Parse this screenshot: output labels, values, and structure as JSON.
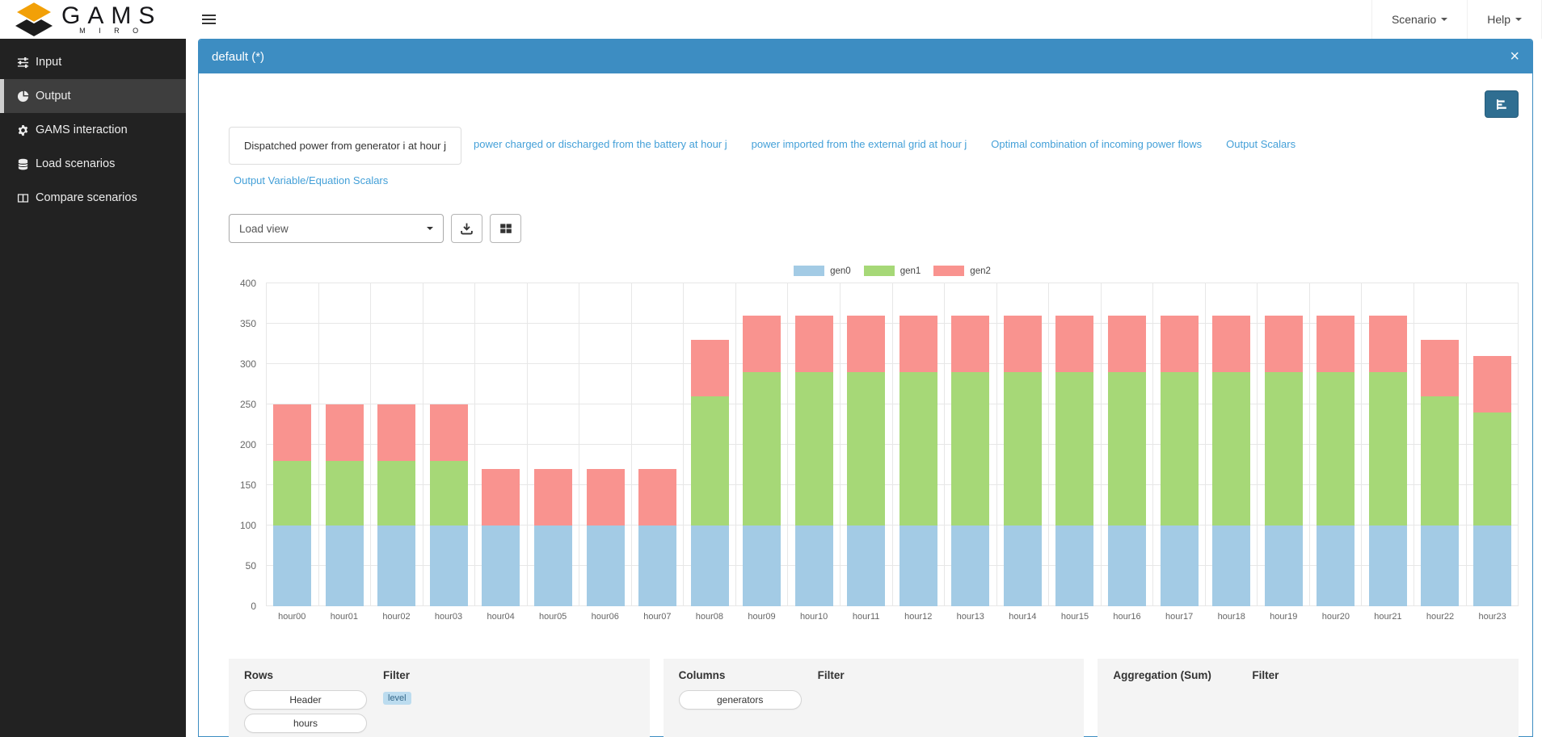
{
  "navbar": {
    "logo_main": "GAMS",
    "logo_sub": "M I R O",
    "scenario_label": "Scenario",
    "help_label": "Help"
  },
  "sidebar": {
    "items": [
      {
        "label": "Input",
        "icon": "sliders-icon",
        "active": false
      },
      {
        "label": "Output",
        "icon": "pie-chart-icon",
        "active": true
      },
      {
        "label": "GAMS interaction",
        "icon": "gear-icon",
        "active": false
      },
      {
        "label": "Load scenarios",
        "icon": "database-icon",
        "active": false
      },
      {
        "label": "Compare scenarios",
        "icon": "columns-icon",
        "active": false
      }
    ]
  },
  "panel": {
    "title": "default (*)",
    "close_label": "×"
  },
  "tabs": {
    "active": "Dispatched power from generator i at hour j",
    "row1": [
      "Dispatched power from generator i at hour j",
      "power charged or discharged from the battery at hour j",
      "power imported from the external grid at hour j",
      "Optimal combination of incoming power flows",
      "Output Scalars"
    ],
    "row2": [
      "Output Variable/Equation Scalars"
    ]
  },
  "toolbar": {
    "load_view_label": "Load view"
  },
  "chart_data": {
    "type": "bar",
    "stacked": true,
    "title": "",
    "xlabel": "",
    "ylabel": "",
    "ylim": [
      0,
      400
    ],
    "ytick_step": 50,
    "grid": true,
    "legend_position": "top",
    "categories": [
      "hour00",
      "hour01",
      "hour02",
      "hour03",
      "hour04",
      "hour05",
      "hour06",
      "hour07",
      "hour08",
      "hour09",
      "hour10",
      "hour11",
      "hour12",
      "hour13",
      "hour14",
      "hour15",
      "hour16",
      "hour17",
      "hour18",
      "hour19",
      "hour20",
      "hour21",
      "hour22",
      "hour23"
    ],
    "series": [
      {
        "name": "gen0",
        "color": "#a3cbe5",
        "values": [
          100,
          100,
          100,
          100,
          100,
          100,
          100,
          100,
          100,
          100,
          100,
          100,
          100,
          100,
          100,
          100,
          100,
          100,
          100,
          100,
          100,
          100,
          100,
          100
        ]
      },
      {
        "name": "gen1",
        "color": "#a6d877",
        "values": [
          80,
          80,
          80,
          80,
          0,
          0,
          0,
          0,
          160,
          190,
          190,
          190,
          190,
          190,
          190,
          190,
          190,
          190,
          190,
          190,
          190,
          190,
          160,
          140
        ]
      },
      {
        "name": "gen2",
        "color": "#f9938f",
        "values": [
          70,
          70,
          70,
          70,
          70,
          70,
          70,
          70,
          70,
          70,
          70,
          70,
          70,
          70,
          70,
          70,
          70,
          70,
          70,
          70,
          70,
          70,
          70,
          70
        ]
      }
    ]
  },
  "pivot": {
    "rows": {
      "title": "Rows",
      "filter_title": "Filter",
      "items": [
        "Header",
        "hours"
      ],
      "filter_badges": [
        "level"
      ]
    },
    "columns": {
      "title": "Columns",
      "filter_title": "Filter",
      "items": [
        "generators"
      ],
      "filter_badges": []
    },
    "aggregation": {
      "title": "Aggregation (Sum)",
      "filter_title": "Filter",
      "items": [],
      "filter_badges": []
    }
  }
}
